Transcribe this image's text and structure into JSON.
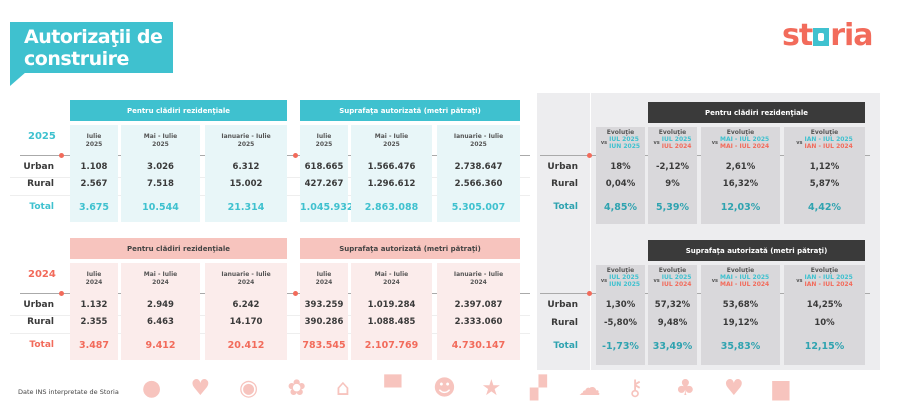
{
  "title": "Autorizaţii de construire",
  "logo": "storia",
  "colors": {
    "teal": "#3fc1cf",
    "red": "#f26b5b",
    "teal_light": "#e8f6f8",
    "red_light": "#fbeceb",
    "red_header": "#f7c4be",
    "dark": "#3a3a3a",
    "gray_cell": "#d9d8db",
    "total_teal": "#2fa3b0"
  },
  "row_labels": [
    "Urban",
    "Rural",
    "Total"
  ],
  "year_2025": {
    "year": "2025",
    "groups": [
      {
        "title": "Pentru clădiri rezidenţiale",
        "columns": [
          {
            "head": [
              "Iulie",
              "2025"
            ],
            "values": [
              "1.108",
              "2.567",
              "3.675"
            ]
          },
          {
            "head": [
              "Mai - Iulie",
              "2025"
            ],
            "values": [
              "3.026",
              "7.518",
              "10.544"
            ]
          },
          {
            "head": [
              "Ianuarie - Iulie",
              "2025"
            ],
            "values": [
              "6.312",
              "15.002",
              "21.314"
            ]
          }
        ]
      },
      {
        "title": "Suprafaţa autorizată (metri pătraţi)",
        "columns": [
          {
            "head": [
              "Iulie",
              "2025"
            ],
            "values": [
              "618.665",
              "427.267",
              "1.045.932"
            ]
          },
          {
            "head": [
              "Mai - Iulie",
              "2025"
            ],
            "values": [
              "1.566.476",
              "1.296.612",
              "2.863.088"
            ]
          },
          {
            "head": [
              "Ianuarie - Iulie",
              "2025"
            ],
            "values": [
              "2.738.647",
              "2.566.360",
              "5.305.007"
            ]
          }
        ]
      }
    ]
  },
  "year_2024": {
    "year": "2024",
    "groups": [
      {
        "title": "Pentru clădiri rezidenţiale",
        "columns": [
          {
            "head": [
              "Iulie",
              "2024"
            ],
            "values": [
              "1.132",
              "2.355",
              "3.487"
            ]
          },
          {
            "head": [
              "Mai - Iulie",
              "2024"
            ],
            "values": [
              "2.949",
              "6.463",
              "9.412"
            ]
          },
          {
            "head": [
              "Ianuarie - Iulie",
              "2024"
            ],
            "values": [
              "6.242",
              "14.170",
              "20.412"
            ]
          }
        ]
      },
      {
        "title": "Suprafaţa autorizată (metri pătraţi)",
        "columns": [
          {
            "head": [
              "Iulie",
              "2024"
            ],
            "values": [
              "393.259",
              "390.286",
              "783.545"
            ]
          },
          {
            "head": [
              "Mai - Iulie",
              "2024"
            ],
            "values": [
              "1.019.284",
              "1.088.485",
              "2.107.769"
            ]
          },
          {
            "head": [
              "Ianuarie - Iulie",
              "2024"
            ],
            "values": [
              "2.397.087",
              "2.333.060",
              "4.730.147"
            ]
          }
        ]
      }
    ]
  },
  "evolution": [
    {
      "title": "Pentru clădiri rezidenţiale",
      "columns": [
        {
          "label": "Evoluţie",
          "vs": "vs",
          "a": "IUL 2025",
          "a_tone": "teal",
          "b": "IUN 2025",
          "b_tone": "teal",
          "values": [
            "18%",
            "0,04%",
            "4,85%"
          ]
        },
        {
          "label": "Evoluţie",
          "vs": "vs",
          "a": "IUL 2025",
          "a_tone": "teal",
          "b": "IUL 2024",
          "b_tone": "red",
          "values": [
            "-2,12%",
            "9%",
            "5,39%"
          ]
        },
        {
          "label": "Evoluţie",
          "vs": "vs",
          "a": "MAI - IUL 2025",
          "a_tone": "teal",
          "b": "MAI - IUL 2024",
          "b_tone": "red",
          "values": [
            "2,61%",
            "16,32%",
            "12,03%"
          ]
        },
        {
          "label": "Evoluţie",
          "vs": "vs",
          "a": "IAN - IUL 2025",
          "a_tone": "teal",
          "b": "IAN - IUL 2024",
          "b_tone": "red",
          "values": [
            "1,12%",
            "5,87%",
            "4,42%"
          ]
        }
      ]
    },
    {
      "title": "Suprafaţa autorizată (metri pătraţi)",
      "columns": [
        {
          "label": "Evoluţie",
          "vs": "vs",
          "a": "IUL 2025",
          "a_tone": "teal",
          "b": "IUN 2025",
          "b_tone": "teal",
          "values": [
            "1,30%",
            "-5,80%",
            "-1,73%"
          ]
        },
        {
          "label": "Evoluţie",
          "vs": "vs",
          "a": "IUL 2025",
          "a_tone": "teal",
          "b": "IUL 2024",
          "b_tone": "red",
          "values": [
            "57,32%",
            "9,48%",
            "33,49%"
          ]
        },
        {
          "label": "Evoluţie",
          "vs": "vs",
          "a": "MAI - IUL 2025",
          "a_tone": "teal",
          "b": "MAI - IUL 2024",
          "b_tone": "red",
          "values": [
            "53,68%",
            "19,12%",
            "35,83%"
          ]
        },
        {
          "label": "Evoluţie",
          "vs": "vs",
          "a": "IAN - IUL 2025",
          "a_tone": "teal",
          "b": "IAN - IUL 2024",
          "b_tone": "red",
          "values": [
            "14,25%",
            "10%",
            "12,15%"
          ]
        }
      ]
    }
  ],
  "footer": {
    "source": "Date INS interpretate de Storia",
    "icons": [
      "balloon-icon",
      "heart-icon",
      "eye-icon",
      "flower-icon",
      "house-icon",
      "speech-bubble-icon",
      "smiley-icon",
      "star-icon",
      "thumbs-up-icon",
      "cloud-icon",
      "key-icon",
      "tree-icon",
      "heart-icon",
      "briefcase-icon"
    ]
  }
}
